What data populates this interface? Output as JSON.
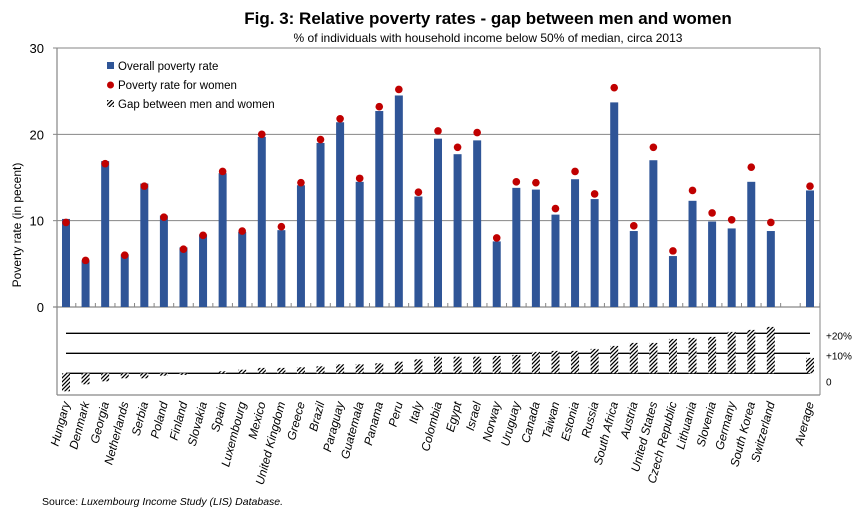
{
  "chart_data": {
    "type": "bar",
    "title": "Fig. 3: Relative poverty rates - gap between men and women",
    "subtitle": "% of individuals  with household  income  below 50% of median, circa 2013",
    "ylabel": "Poverty rate (in pecent)",
    "xlabel": "",
    "ylim": [
      0,
      30
    ],
    "yticks": [
      "0",
      "10",
      "20",
      "30"
    ],
    "gap_ticks": [
      "0",
      "+10%",
      "+20%"
    ],
    "gap_ylim_percent": [
      -10,
      20
    ],
    "grid": true,
    "legend": {
      "placement": "top-left",
      "entries": [
        {
          "label": "Overall poverty rate",
          "marker": "square",
          "color": "#2F5597"
        },
        {
          "label": "Poverty rate for women",
          "marker": "circle",
          "color": "#C00000"
        },
        {
          "label": "Gap between men and women",
          "marker": "hatched",
          "color": "#000000"
        }
      ]
    },
    "categories": [
      "Hungary",
      "Denmark",
      "Georgia",
      "Netherlands",
      "Serbia",
      "Poland",
      "Finland",
      "Slovakia",
      "Spain",
      "Luxembourg",
      "Mexico",
      "United Kingdom",
      "Greece",
      "Brazil",
      "Paraguay",
      "Guatemala",
      "Panama",
      "Peru",
      "Italy",
      "Colombia",
      "Egypt",
      "Israel",
      "Norway",
      "Uruguay",
      "Canada",
      "Taiwan",
      "Estonia",
      "Russia",
      "South Africa",
      "Austria",
      "United States",
      "Czech Republic",
      "Lithuania",
      "Slovenia",
      "Germany",
      "South Korea",
      "Switzerland",
      "",
      "Average"
    ],
    "series": [
      {
        "name": "Overall poverty rate",
        "type": "bar",
        "color": "#2F5597",
        "values": [
          10.2,
          5.4,
          16.9,
          6.1,
          14.3,
          10.6,
          6.9,
          8.4,
          15.5,
          8.7,
          19.7,
          8.9,
          14.1,
          19.0,
          21.4,
          14.5,
          22.7,
          24.5,
          12.8,
          19.5,
          17.7,
          19.3,
          7.6,
          13.8,
          13.6,
          10.7,
          14.8,
          12.5,
          23.7,
          8.8,
          17.0,
          5.9,
          12.3,
          9.9,
          9.1,
          14.5,
          8.8,
          null,
          13.5
        ]
      },
      {
        "name": "Poverty rate for women",
        "type": "scatter",
        "color": "#C00000",
        "values": [
          9.8,
          5.4,
          16.6,
          6.0,
          14.0,
          10.4,
          6.7,
          8.3,
          15.7,
          8.8,
          20.0,
          9.3,
          14.4,
          19.4,
          21.8,
          14.9,
          23.2,
          25.2,
          13.3,
          20.4,
          18.5,
          20.2,
          8.0,
          14.5,
          14.4,
          11.4,
          15.7,
          13.1,
          25.4,
          9.4,
          18.5,
          6.5,
          13.5,
          10.9,
          10.1,
          16.2,
          9.8,
          null,
          14.0
        ]
      },
      {
        "name": "Gap between men and women",
        "type": "bar",
        "unit": "%",
        "color": "#000000",
        "values": [
          -9.0,
          -5.5,
          -4.0,
          -2.5,
          -2.5,
          -1.2,
          -0.8,
          0.0,
          1.0,
          1.8,
          2.7,
          2.7,
          3.0,
          3.5,
          4.5,
          4.5,
          5.0,
          5.8,
          7.0,
          8.3,
          8.3,
          8.3,
          8.7,
          9.2,
          10.7,
          11.2,
          11.2,
          12.2,
          13.7,
          15.2,
          15.2,
          17.2,
          17.7,
          18.2,
          20.7,
          21.7,
          23.2,
          null,
          7.7
        ]
      }
    ]
  },
  "source": {
    "prefix": "Source: ",
    "text": "Luxembourg Income Study  (LIS) Database."
  }
}
